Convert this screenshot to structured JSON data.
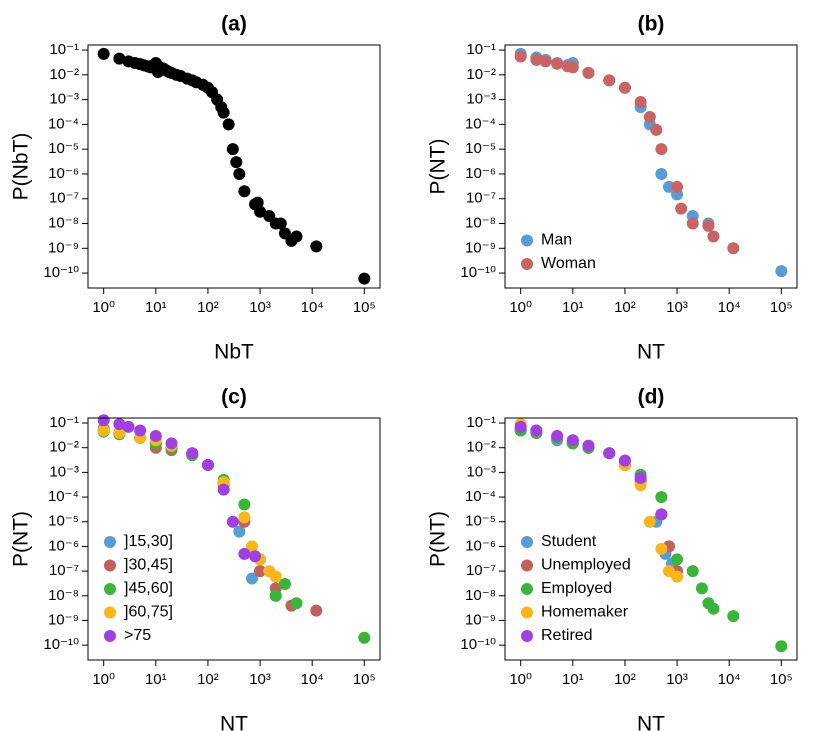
{
  "chart_data": [
    {
      "type": "scatter",
      "title": "(a)",
      "x_label": "NbT",
      "y_label": "P(NbT)",
      "log_x": true,
      "log_y": true,
      "xlim": [
        0.5,
        200000
      ],
      "ylim": [
        2.5e-11,
        0.16
      ],
      "xticks": [
        {
          "value": 1,
          "label": "10⁰"
        },
        {
          "value": 10,
          "label": "10¹"
        },
        {
          "value": 100,
          "label": "10²"
        },
        {
          "value": 1000,
          "label": "10³"
        },
        {
          "value": 10000,
          "label": "10⁴"
        },
        {
          "value": 100000,
          "label": "10⁵"
        }
      ],
      "yticks": [
        {
          "value": 1e-10,
          "label": "10⁻¹⁰"
        },
        {
          "value": 1e-09,
          "label": "10⁻⁹"
        },
        {
          "value": 1e-08,
          "label": "10⁻⁸"
        },
        {
          "value": 1e-07,
          "label": "10⁻⁷"
        },
        {
          "value": 1e-06,
          "label": "10⁻⁶"
        },
        {
          "value": 1e-05,
          "label": "10⁻⁵"
        },
        {
          "value": 0.0001,
          "label": "10⁻⁴"
        },
        {
          "value": 0.001,
          "label": "10⁻³"
        },
        {
          "value": 0.01,
          "label": "10⁻²"
        },
        {
          "value": 0.1,
          "label": "10⁻¹"
        }
      ],
      "series": [
        {
          "color": "#000000",
          "x": [
            1,
            2,
            3,
            4,
            5,
            6,
            7,
            8,
            9,
            10,
            11,
            12,
            14,
            16,
            18,
            20,
            25,
            30,
            40,
            50,
            60,
            80,
            100,
            120,
            150,
            180,
            200,
            250,
            300,
            350,
            400,
            500,
            800,
            900,
            1000,
            1500,
            2000,
            2500,
            3000,
            4000,
            5000,
            12000,
            100000
          ],
          "values": [
            0.07,
            0.045,
            0.035,
            0.03,
            0.027,
            0.024,
            0.022,
            0.02,
            0.025,
            0.03,
            0.013,
            0.02,
            0.018,
            0.015,
            0.013,
            0.012,
            0.01,
            0.009,
            0.007,
            0.006,
            0.005,
            0.004,
            0.003,
            0.002,
            0.001,
            0.0005,
            0.0003,
            0.0001,
            1e-05,
            3e-06,
            1e-06,
            2e-07,
            6e-08,
            7e-08,
            3e-08,
            2e-08,
            1e-08,
            1e-08,
            4e-09,
            2e-09,
            3e-09,
            1.2e-09,
            6e-11
          ]
        }
      ]
    },
    {
      "type": "scatter",
      "title": "(b)",
      "x_label": "NT",
      "y_label": "P(NT)",
      "log_x": true,
      "log_y": true,
      "legend": "bottom-left",
      "xlim": [
        0.5,
        200000
      ],
      "ylim": [
        2.5e-11,
        0.16
      ],
      "xticks": [
        {
          "value": 1,
          "label": "10⁰"
        },
        {
          "value": 10,
          "label": "10¹"
        },
        {
          "value": 100,
          "label": "10²"
        },
        {
          "value": 1000,
          "label": "10³"
        },
        {
          "value": 10000,
          "label": "10⁴"
        },
        {
          "value": 100000,
          "label": "10⁵"
        }
      ],
      "yticks": [
        {
          "value": 1e-10,
          "label": "10⁻¹⁰"
        },
        {
          "value": 1e-09,
          "label": "10⁻⁹"
        },
        {
          "value": 1e-08,
          "label": "10⁻⁸"
        },
        {
          "value": 1e-07,
          "label": "10⁻⁷"
        },
        {
          "value": 1e-06,
          "label": "10⁻⁶"
        },
        {
          "value": 1e-05,
          "label": "10⁻⁵"
        },
        {
          "value": 0.0001,
          "label": "10⁻⁴"
        },
        {
          "value": 0.001,
          "label": "10⁻³"
        },
        {
          "value": 0.01,
          "label": "10⁻²"
        },
        {
          "value": 0.1,
          "label": "10⁻¹"
        }
      ],
      "series": [
        {
          "name": "Man",
          "color": "#5b9bd5",
          "x": [
            1,
            2,
            3,
            5,
            8,
            10,
            20,
            50,
            100,
            200,
            300,
            500,
            700,
            1000,
            2000,
            4000,
            100000
          ],
          "values": [
            0.07,
            0.05,
            0.04,
            0.03,
            0.025,
            0.03,
            0.012,
            0.006,
            0.003,
            0.0005,
            0.0001,
            1e-06,
            3e-07,
            1.5e-07,
            2e-08,
            1e-08,
            1.2e-10
          ]
        },
        {
          "name": "Woman",
          "color": "#c86464",
          "x": [
            1,
            2,
            3,
            5,
            8,
            10,
            20,
            50,
            100,
            200,
            300,
            400,
            500,
            1000,
            1200,
            2000,
            4000,
            5000,
            12000
          ],
          "values": [
            0.055,
            0.04,
            0.035,
            0.028,
            0.022,
            0.02,
            0.012,
            0.006,
            0.003,
            0.0008,
            0.0002,
            6e-05,
            1e-05,
            3e-07,
            4e-08,
            1e-08,
            8e-09,
            3e-09,
            1e-09
          ]
        }
      ]
    },
    {
      "type": "scatter",
      "title": "(c)",
      "x_label": "NT",
      "y_label": "P(NT)",
      "log_x": true,
      "log_y": true,
      "legend": "bottom-left",
      "xlim": [
        0.5,
        200000
      ],
      "ylim": [
        2.5e-11,
        0.16
      ],
      "xticks": [
        {
          "value": 1,
          "label": "10⁰"
        },
        {
          "value": 10,
          "label": "10¹"
        },
        {
          "value": 100,
          "label": "10²"
        },
        {
          "value": 1000,
          "label": "10³"
        },
        {
          "value": 10000,
          "label": "10⁴"
        },
        {
          "value": 100000,
          "label": "10⁵"
        }
      ],
      "yticks": [
        {
          "value": 1e-10,
          "label": "10⁻¹⁰"
        },
        {
          "value": 1e-09,
          "label": "10⁻⁹"
        },
        {
          "value": 1e-08,
          "label": "10⁻⁸"
        },
        {
          "value": 1e-07,
          "label": "10⁻⁷"
        },
        {
          "value": 1e-06,
          "label": "10⁻⁶"
        },
        {
          "value": 1e-05,
          "label": "10⁻⁵"
        },
        {
          "value": 0.0001,
          "label": "10⁻⁴"
        },
        {
          "value": 0.001,
          "label": "10⁻³"
        },
        {
          "value": 0.01,
          "label": "10⁻²"
        },
        {
          "value": 0.1,
          "label": "10⁻¹"
        }
      ],
      "series": [
        {
          "name": "]15,30]",
          "color": "#5b9bd5",
          "x": [
            1,
            2,
            5,
            10,
            20,
            50,
            100,
            200,
            400,
            700,
            1000,
            2000
          ],
          "values": [
            0.06,
            0.04,
            0.025,
            0.015,
            0.01,
            0.005,
            0.002,
            0.0004,
            4e-06,
            5e-08,
            1e-07,
            1e-08
          ]
        },
        {
          "name": "]30,45]",
          "color": "#c06060",
          "x": [
            1,
            2,
            5,
            10,
            20,
            50,
            100,
            200,
            500,
            1000,
            2000,
            4000,
            12000
          ],
          "values": [
            0.05,
            0.04,
            0.025,
            0.01,
            0.008,
            0.005,
            0.002,
            0.0003,
            1e-05,
            1e-07,
            2e-08,
            4e-09,
            2.5e-09
          ]
        },
        {
          "name": "]45,60]",
          "color": "#3cb43c",
          "x": [
            1,
            2,
            5,
            10,
            20,
            50,
            100,
            200,
            500,
            1000,
            2000,
            3000,
            5000,
            100000
          ],
          "values": [
            0.045,
            0.035,
            0.025,
            0.015,
            0.01,
            0.005,
            0.002,
            0.0005,
            5e-05,
            3e-07,
            1e-08,
            3e-08,
            5e-09,
            2e-10
          ]
        },
        {
          "name": "]60,75]",
          "color": "#f9b51c",
          "x": [
            1,
            2,
            5,
            10,
            20,
            50,
            100,
            200,
            500,
            700,
            1000,
            1500,
            2000
          ],
          "values": [
            0.05,
            0.04,
            0.025,
            0.02,
            0.012,
            0.006,
            0.002,
            0.0004,
            1.5e-05,
            1e-06,
            3e-07,
            1e-07,
            6e-08
          ]
        },
        {
          "name": ">75",
          "color": "#a040e0",
          "x": [
            1,
            2,
            3,
            5,
            10,
            20,
            50,
            100,
            200,
            300,
            500,
            800
          ],
          "values": [
            0.13,
            0.09,
            0.07,
            0.05,
            0.03,
            0.015,
            0.006,
            0.002,
            0.0002,
            1e-05,
            5e-07,
            4e-07
          ]
        }
      ]
    },
    {
      "type": "scatter",
      "title": "(d)",
      "x_label": "NT",
      "y_label": "P(NT)",
      "log_x": true,
      "log_y": true,
      "legend": "bottom-left",
      "xlim": [
        0.5,
        200000
      ],
      "ylim": [
        2.5e-11,
        0.16
      ],
      "xticks": [
        {
          "value": 1,
          "label": "10⁰"
        },
        {
          "value": 10,
          "label": "10¹"
        },
        {
          "value": 100,
          "label": "10²"
        },
        {
          "value": 1000,
          "label": "10³"
        },
        {
          "value": 10000,
          "label": "10⁴"
        },
        {
          "value": 100000,
          "label": "10⁵"
        }
      ],
      "yticks": [
        {
          "value": 1e-10,
          "label": "10⁻¹⁰"
        },
        {
          "value": 1e-09,
          "label": "10⁻⁹"
        },
        {
          "value": 1e-08,
          "label": "10⁻⁸"
        },
        {
          "value": 1e-07,
          "label": "10⁻⁷"
        },
        {
          "value": 1e-06,
          "label": "10⁻⁶"
        },
        {
          "value": 1e-05,
          "label": "10⁻⁵"
        },
        {
          "value": 0.0001,
          "label": "10⁻⁴"
        },
        {
          "value": 0.001,
          "label": "10⁻³"
        },
        {
          "value": 0.01,
          "label": "10⁻²"
        },
        {
          "value": 0.1,
          "label": "10⁻¹"
        }
      ],
      "series": [
        {
          "name": "Student",
          "color": "#5b9bd5",
          "x": [
            1,
            2,
            5,
            10,
            20,
            50,
            100,
            200,
            400,
            600,
            800
          ],
          "values": [
            0.06,
            0.04,
            0.02,
            0.015,
            0.01,
            0.006,
            0.002,
            0.0004,
            1e-05,
            5e-07,
            2e-07
          ]
        },
        {
          "name": "Unemployed",
          "color": "#c06060",
          "x": [
            1,
            2,
            5,
            10,
            20,
            50,
            100,
            200,
            500,
            700,
            1000
          ],
          "values": [
            0.05,
            0.04,
            0.025,
            0.015,
            0.01,
            0.006,
            0.002,
            0.0005,
            2e-05,
            1e-06,
            1e-07
          ]
        },
        {
          "name": "Employed",
          "color": "#3cb43c",
          "x": [
            1,
            2,
            5,
            10,
            20,
            50,
            100,
            200,
            500,
            1000,
            2000,
            3000,
            4000,
            5000,
            12000,
            100000
          ],
          "values": [
            0.05,
            0.04,
            0.025,
            0.015,
            0.01,
            0.006,
            0.003,
            0.0008,
            0.0001,
            3e-07,
            1e-07,
            2e-08,
            5e-09,
            3e-09,
            1.5e-09,
            9e-11
          ]
        },
        {
          "name": "Homemaker",
          "color": "#f9b51c",
          "x": [
            1,
            2,
            5,
            10,
            20,
            50,
            100,
            200,
            300,
            500,
            700,
            1000
          ],
          "values": [
            0.09,
            0.05,
            0.03,
            0.02,
            0.012,
            0.006,
            0.002,
            0.0003,
            1e-05,
            8e-07,
            1e-07,
            6e-08
          ]
        },
        {
          "name": "Retired",
          "color": "#a040e0",
          "x": [
            1,
            2,
            5,
            10,
            20,
            50,
            100,
            200,
            500
          ],
          "values": [
            0.07,
            0.05,
            0.03,
            0.02,
            0.012,
            0.006,
            0.003,
            0.0006,
            2e-05
          ]
        }
      ]
    }
  ]
}
